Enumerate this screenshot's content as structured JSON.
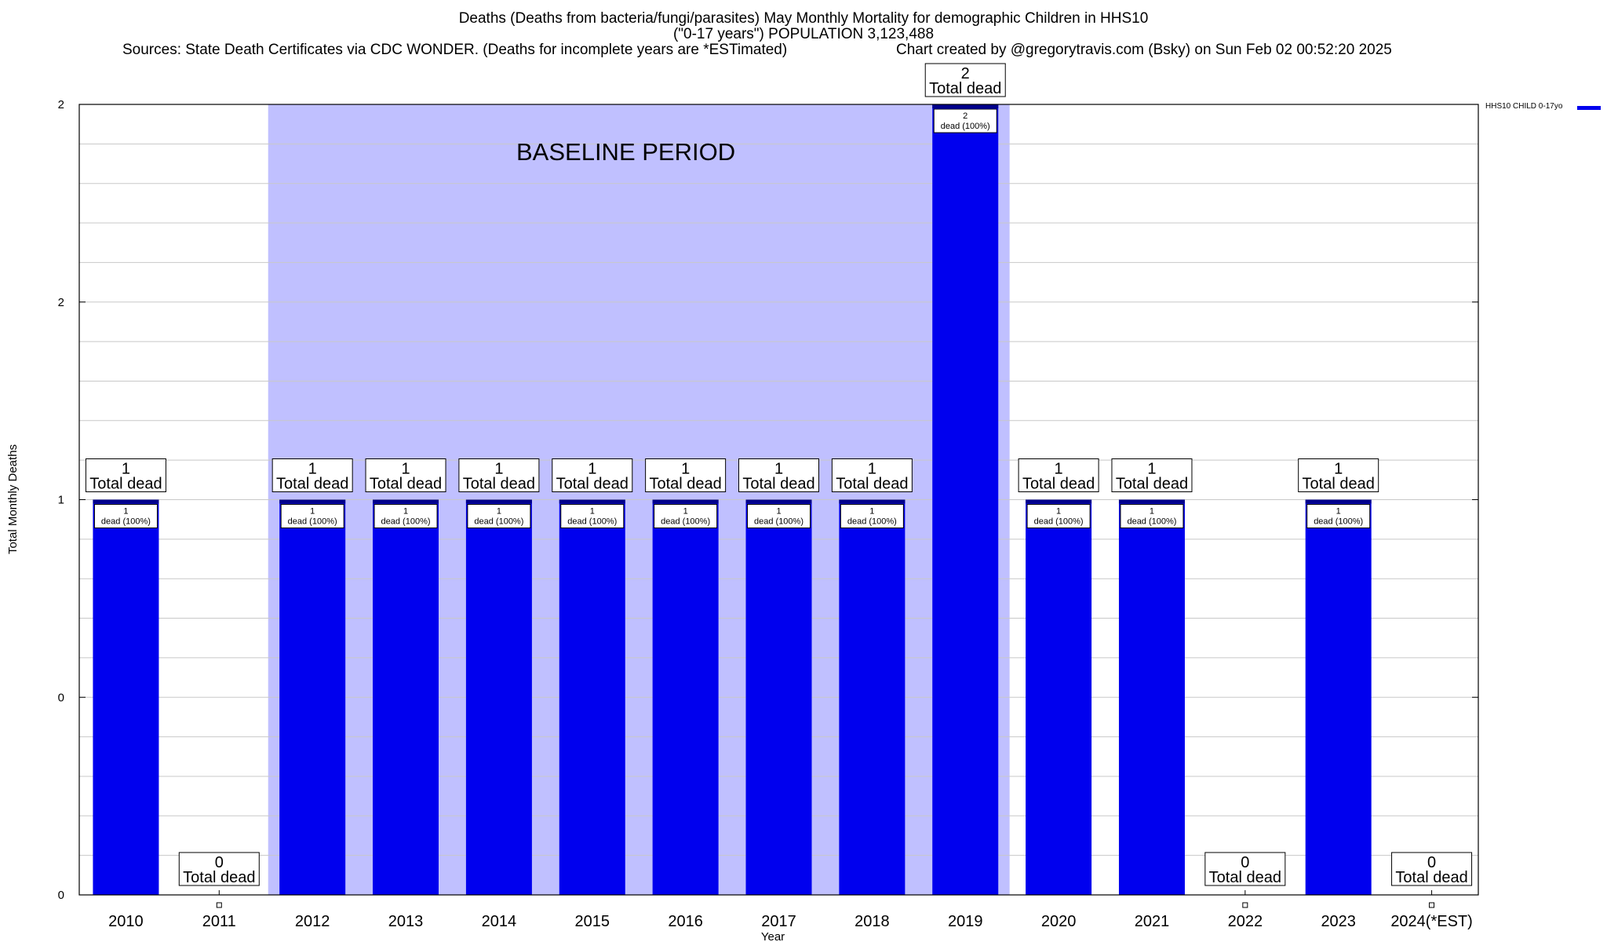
{
  "title": {
    "line1": "Deaths (Deaths from bacteria/fungi/parasites) May Monthly Mortality for demographic Children in HHS10",
    "line2": "(\"0-17 years\") POPULATION 3,123,488",
    "sources": "Sources: State Death Certificates via CDC WONDER. (Deaths for incomplete years are *ESTimated)",
    "credit": "Chart created by @gregorytravis.com (Bsky) on Sun Feb 02 00:52:20 2025"
  },
  "colors": {
    "bar": "#0000ee",
    "baseline_band": "#c0c0ff",
    "grid": "#c8c8c8"
  },
  "chart_data": {
    "type": "bar",
    "xlabel": "Year",
    "ylabel": "Total Monthly Deaths",
    "categories": [
      "2010",
      "2011",
      "2012",
      "2013",
      "2014",
      "2015",
      "2016",
      "2017",
      "2018",
      "2019",
      "2020",
      "2021",
      "2022",
      "2023",
      "2024(*EST)"
    ],
    "series": [
      {
        "name": "HHS10 CHILD 0-17yo",
        "values": [
          1,
          0,
          1,
          1,
          1,
          1,
          1,
          1,
          1,
          2,
          1,
          1,
          0,
          1,
          0
        ]
      }
    ],
    "total_label_suffix": "Total dead",
    "inner_label_suffix": "dead (100%)",
    "ylim": [
      0,
      2
    ],
    "yticks": [
      {
        "value": 0,
        "label": "0"
      },
      {
        "value": 0.5,
        "label": "0"
      },
      {
        "value": 1,
        "label": "1"
      },
      {
        "value": 1.5,
        "label": "2"
      },
      {
        "value": 2,
        "label": "2"
      }
    ],
    "annotation": "BASELINE PERIOD",
    "baseline_period": [
      "2012",
      "2019"
    ],
    "grid": true,
    "legend_position": "top-right"
  }
}
